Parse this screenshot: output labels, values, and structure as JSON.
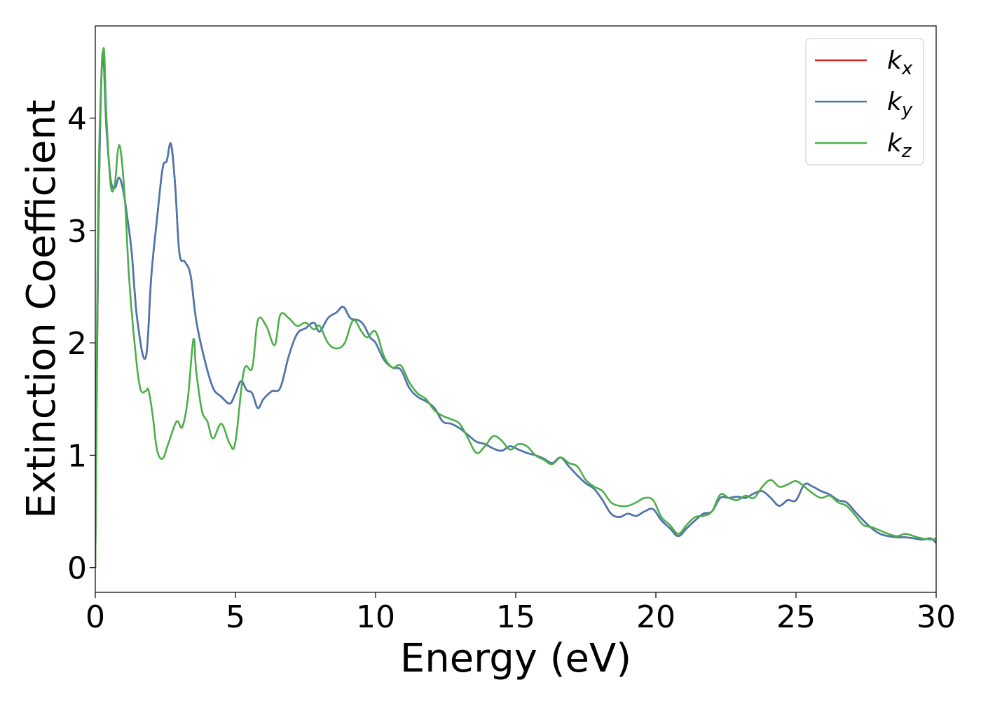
{
  "chart_data": {
    "type": "line",
    "title": "",
    "xlabel": "Energy (eV)",
    "ylabel": "Extinction Coefficient",
    "xlim": [
      0,
      30
    ],
    "ylim": [
      -0.22,
      4.82
    ],
    "xticks": [
      0,
      5,
      10,
      15,
      20,
      25,
      30
    ],
    "xtick_labels": [
      "0",
      "5",
      "10",
      "15",
      "20",
      "25",
      "30"
    ],
    "yticks": [
      0,
      1,
      2,
      3,
      4
    ],
    "ytick_labels": [
      "0",
      "1",
      "2",
      "3",
      "4"
    ],
    "grid": false,
    "legend": {
      "placement": "top-right",
      "entries": [
        {
          "base": "k",
          "sub": "x",
          "color": "#d62728"
        },
        {
          "base": "k",
          "sub": "y",
          "color": "#4a78b0"
        },
        {
          "base": "k",
          "sub": "z",
          "color": "#4daf4a"
        }
      ]
    },
    "series": [
      {
        "name": "kx",
        "color": "#d62728",
        "x": [
          0,
          0.1,
          0.25,
          0.4,
          0.55,
          0.7,
          0.85,
          1.0,
          1.15,
          1.3,
          1.5,
          1.8,
          2.0,
          2.2,
          2.4,
          2.55,
          2.7,
          2.85,
          3.0,
          3.2,
          3.4,
          3.6,
          3.9,
          4.2,
          4.5,
          4.8,
          5.0,
          5.2,
          5.4,
          5.6,
          5.8,
          6.0,
          6.3,
          6.6,
          6.9,
          7.2,
          7.5,
          7.8,
          8.0,
          8.3,
          8.6,
          8.85,
          9.1,
          9.4,
          9.6,
          9.8,
          10.0,
          10.3,
          10.6,
          10.9,
          11.2,
          11.5,
          11.8,
          12.1,
          12.4,
          12.7,
          13.0,
          13.3,
          13.6,
          13.9,
          14.2,
          14.5,
          14.8,
          15.1,
          15.4,
          15.7,
          16.0,
          16.3,
          16.6,
          16.9,
          17.2,
          17.5,
          17.8,
          18.1,
          18.4,
          18.7,
          19.0,
          19.3,
          19.6,
          19.9,
          20.2,
          20.5,
          20.8,
          21.1,
          21.4,
          21.7,
          22.0,
          22.3,
          22.6,
          22.9,
          23.2,
          23.5,
          23.8,
          24.1,
          24.4,
          24.7,
          25.0,
          25.3,
          25.6,
          25.9,
          26.2,
          26.5,
          26.8,
          27.1,
          27.4,
          27.7,
          28.0,
          28.3,
          28.6,
          28.9,
          29.2,
          29.5,
          29.8,
          30.0
        ],
        "y": [
          0.0,
          2.8,
          4.55,
          3.9,
          3.45,
          3.38,
          3.47,
          3.35,
          3.1,
          2.8,
          2.2,
          1.87,
          2.6,
          3.1,
          3.55,
          3.62,
          3.77,
          3.4,
          2.8,
          2.72,
          2.6,
          2.2,
          1.85,
          1.6,
          1.52,
          1.46,
          1.55,
          1.66,
          1.58,
          1.55,
          1.42,
          1.5,
          1.57,
          1.6,
          1.88,
          2.08,
          2.13,
          2.18,
          2.1,
          2.22,
          2.27,
          2.32,
          2.22,
          2.2,
          2.15,
          2.05,
          2.0,
          1.85,
          1.78,
          1.76,
          1.6,
          1.52,
          1.48,
          1.42,
          1.3,
          1.28,
          1.24,
          1.18,
          1.12,
          1.1,
          1.06,
          1.04,
          1.08,
          1.05,
          1.02,
          1.0,
          0.97,
          0.93,
          0.98,
          0.9,
          0.82,
          0.75,
          0.7,
          0.6,
          0.48,
          0.45,
          0.48,
          0.46,
          0.5,
          0.52,
          0.42,
          0.35,
          0.28,
          0.35,
          0.42,
          0.48,
          0.5,
          0.62,
          0.62,
          0.63,
          0.62,
          0.66,
          0.68,
          0.62,
          0.55,
          0.6,
          0.6,
          0.74,
          0.72,
          0.68,
          0.65,
          0.6,
          0.58,
          0.5,
          0.42,
          0.35,
          0.3,
          0.28,
          0.27,
          0.27,
          0.26,
          0.25,
          0.26,
          0.22
        ]
      },
      {
        "name": "ky",
        "color": "#4a78b0",
        "x": [
          0,
          0.1,
          0.25,
          0.4,
          0.55,
          0.7,
          0.85,
          1.0,
          1.15,
          1.3,
          1.5,
          1.8,
          2.0,
          2.2,
          2.4,
          2.55,
          2.7,
          2.85,
          3.0,
          3.2,
          3.4,
          3.6,
          3.9,
          4.2,
          4.5,
          4.8,
          5.0,
          5.2,
          5.4,
          5.6,
          5.8,
          6.0,
          6.3,
          6.6,
          6.9,
          7.2,
          7.5,
          7.8,
          8.0,
          8.3,
          8.6,
          8.85,
          9.1,
          9.4,
          9.6,
          9.8,
          10.0,
          10.3,
          10.6,
          10.9,
          11.2,
          11.5,
          11.8,
          12.1,
          12.4,
          12.7,
          13.0,
          13.3,
          13.6,
          13.9,
          14.2,
          14.5,
          14.8,
          15.1,
          15.4,
          15.7,
          16.0,
          16.3,
          16.6,
          16.9,
          17.2,
          17.5,
          17.8,
          18.1,
          18.4,
          18.7,
          19.0,
          19.3,
          19.6,
          19.9,
          20.2,
          20.5,
          20.8,
          21.1,
          21.4,
          21.7,
          22.0,
          22.3,
          22.6,
          22.9,
          23.2,
          23.5,
          23.8,
          24.1,
          24.4,
          24.7,
          25.0,
          25.3,
          25.6,
          25.9,
          26.2,
          26.5,
          26.8,
          27.1,
          27.4,
          27.7,
          28.0,
          28.3,
          28.6,
          28.9,
          29.2,
          29.5,
          29.8,
          30.0
        ],
        "y": [
          0.0,
          2.8,
          4.55,
          3.9,
          3.45,
          3.38,
          3.47,
          3.35,
          3.1,
          2.8,
          2.2,
          1.87,
          2.6,
          3.1,
          3.55,
          3.62,
          3.77,
          3.4,
          2.8,
          2.72,
          2.6,
          2.2,
          1.85,
          1.6,
          1.52,
          1.46,
          1.55,
          1.66,
          1.58,
          1.55,
          1.42,
          1.5,
          1.57,
          1.6,
          1.88,
          2.08,
          2.13,
          2.18,
          2.1,
          2.22,
          2.27,
          2.32,
          2.22,
          2.2,
          2.15,
          2.05,
          2.0,
          1.85,
          1.78,
          1.76,
          1.6,
          1.52,
          1.48,
          1.42,
          1.3,
          1.28,
          1.24,
          1.18,
          1.12,
          1.1,
          1.06,
          1.04,
          1.08,
          1.05,
          1.02,
          1.0,
          0.97,
          0.93,
          0.98,
          0.9,
          0.82,
          0.75,
          0.7,
          0.6,
          0.48,
          0.45,
          0.48,
          0.46,
          0.5,
          0.52,
          0.42,
          0.35,
          0.28,
          0.35,
          0.42,
          0.48,
          0.5,
          0.62,
          0.62,
          0.63,
          0.62,
          0.66,
          0.68,
          0.62,
          0.55,
          0.6,
          0.6,
          0.74,
          0.72,
          0.68,
          0.65,
          0.6,
          0.58,
          0.5,
          0.42,
          0.35,
          0.3,
          0.28,
          0.27,
          0.27,
          0.26,
          0.25,
          0.26,
          0.22
        ]
      },
      {
        "name": "kz",
        "color": "#4daf4a",
        "x": [
          0,
          0.1,
          0.28,
          0.4,
          0.55,
          0.7,
          0.8,
          0.9,
          1.05,
          1.2,
          1.4,
          1.6,
          1.8,
          1.9,
          2.05,
          2.2,
          2.4,
          2.6,
          2.9,
          3.1,
          3.3,
          3.5,
          3.6,
          3.8,
          4.0,
          4.2,
          4.5,
          4.8,
          5.0,
          5.3,
          5.6,
          5.8,
          6.1,
          6.4,
          6.6,
          6.9,
          7.2,
          7.5,
          7.8,
          8.0,
          8.3,
          8.6,
          8.9,
          9.2,
          9.5,
          9.7,
          10.0,
          10.3,
          10.6,
          10.9,
          11.2,
          11.5,
          11.8,
          12.1,
          12.4,
          12.7,
          13.0,
          13.3,
          13.6,
          13.9,
          14.2,
          14.5,
          14.8,
          15.1,
          15.4,
          15.7,
          16.0,
          16.3,
          16.6,
          16.9,
          17.2,
          17.5,
          17.8,
          18.1,
          18.4,
          18.7,
          19.0,
          19.3,
          19.6,
          19.9,
          20.2,
          20.5,
          20.8,
          21.1,
          21.4,
          21.7,
          22.0,
          22.3,
          22.6,
          22.9,
          23.2,
          23.5,
          23.8,
          24.1,
          24.4,
          24.7,
          25.0,
          25.3,
          25.6,
          25.9,
          26.2,
          26.5,
          26.8,
          27.1,
          27.4,
          27.7,
          28.0,
          28.3,
          28.6,
          28.9,
          29.2,
          29.5,
          29.8,
          30.0
        ],
        "y": [
          0.0,
          3.2,
          4.6,
          4.0,
          3.4,
          3.42,
          3.7,
          3.72,
          3.3,
          2.6,
          2.0,
          1.6,
          1.57,
          1.58,
          1.35,
          1.05,
          0.97,
          1.1,
          1.3,
          1.25,
          1.5,
          2.03,
          1.75,
          1.4,
          1.3,
          1.15,
          1.28,
          1.1,
          1.12,
          1.75,
          1.78,
          2.2,
          2.15,
          1.98,
          2.25,
          2.22,
          2.15,
          2.18,
          2.12,
          2.15,
          2.0,
          1.95,
          2.0,
          2.2,
          2.1,
          2.05,
          2.1,
          1.88,
          1.78,
          1.8,
          1.65,
          1.55,
          1.5,
          1.4,
          1.35,
          1.32,
          1.28,
          1.15,
          1.02,
          1.08,
          1.17,
          1.13,
          1.05,
          1.1,
          1.08,
          1.0,
          0.96,
          0.92,
          0.98,
          0.93,
          0.9,
          0.78,
          0.72,
          0.68,
          0.58,
          0.55,
          0.55,
          0.58,
          0.62,
          0.6,
          0.45,
          0.38,
          0.3,
          0.38,
          0.45,
          0.46,
          0.5,
          0.65,
          0.62,
          0.6,
          0.64,
          0.62,
          0.72,
          0.78,
          0.72,
          0.74,
          0.77,
          0.72,
          0.66,
          0.62,
          0.64,
          0.58,
          0.55,
          0.47,
          0.38,
          0.36,
          0.33,
          0.3,
          0.28,
          0.3,
          0.28,
          0.26,
          0.25,
          0.26
        ]
      }
    ]
  }
}
